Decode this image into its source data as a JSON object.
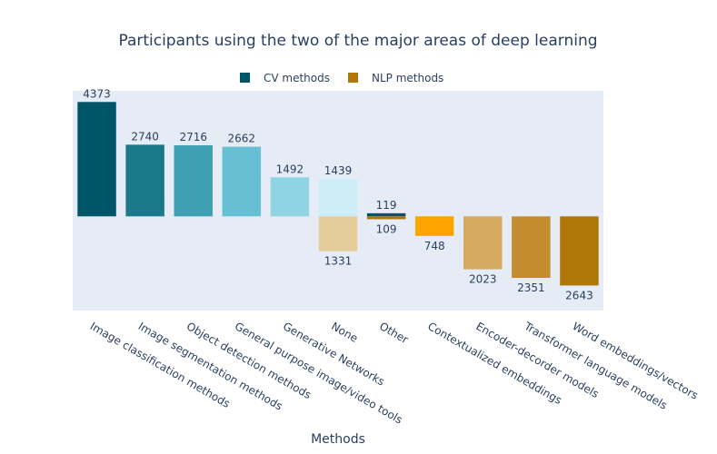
{
  "chart_data": {
    "type": "bar",
    "title": "Participants using the two of the major areas of deep learning",
    "xlabel": "Methods",
    "ylabel": "",
    "barmode": "relative",
    "legend_position": "top-center",
    "grid": false,
    "ylim": [
      -3600,
      4800
    ],
    "categories": [
      "Image classification methods",
      "Image segmentation methods",
      "Object detection methods",
      "General purpose image/video tools",
      "Generative Networks",
      "None",
      "Other",
      "Contextualized embeddings",
      "Encoder-decorder models",
      "Transformer language models",
      "Word embeddings/vectors"
    ],
    "series": [
      {
        "name": "CV methods",
        "legend_color": "#005566",
        "values": [
          4373,
          2740,
          2716,
          2662,
          1492,
          1439,
          119,
          null,
          null,
          null,
          null
        ],
        "colors": [
          "#005566",
          "#1a7a8c",
          "#3fa0b4",
          "#67bfd4",
          "#90d4e4",
          "#cdeef7",
          "#005566",
          null,
          null,
          null,
          null
        ]
      },
      {
        "name": "NLP methods",
        "legend_color": "#b07708",
        "values": [
          null,
          null,
          null,
          null,
          null,
          -1331,
          -109,
          -748,
          -2023,
          -2351,
          -2643
        ],
        "display_values": [
          null,
          null,
          null,
          null,
          null,
          1331,
          109,
          748,
          2023,
          2351,
          2643
        ],
        "colors": [
          null,
          null,
          null,
          null,
          null,
          "#e6cc9a",
          "#b07708",
          "#ffa500",
          "#d4aa60",
          "#c48c2c",
          "#b07708"
        ]
      }
    ]
  }
}
